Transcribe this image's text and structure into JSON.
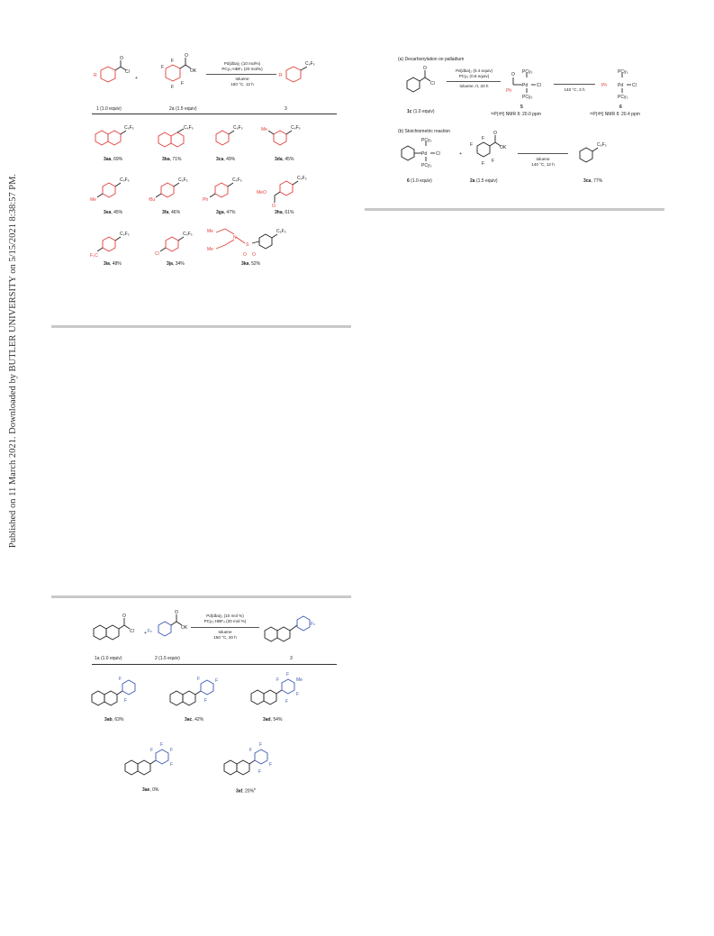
{
  "side_note": "Published on 11 March 2021. Downloaded by BUTLER UNIVERSITY on 5/15/2021 8:38:57 PM.",
  "scheme1": {
    "conditions": [
      "Pd(dba)₂ (10 mol%)",
      "PCy₃·HBF₄ (20 mol%)",
      "toluene",
      "150 °C, 12 h"
    ],
    "reactant1": "1 (1.0 equiv)",
    "reactant2": "2a (1.5 equiv)",
    "product": "3",
    "plus": "+",
    "products": [
      {
        "id": "3aa",
        "yield": ", 69%"
      },
      {
        "id": "3ba",
        "yield": ", 71%"
      },
      {
        "id": "3ca",
        "yield": ", 49%"
      },
      {
        "id": "3da",
        "yield": ", 45%"
      },
      {
        "id": "3ea",
        "yield": ", 45%"
      },
      {
        "id": "3fa",
        "yield": ", 46%"
      },
      {
        "id": "3ga",
        "yield": ", 47%"
      },
      {
        "id": "3ha",
        "yield": ", 61%"
      },
      {
        "id": "3ia",
        "yield": ", 48%"
      },
      {
        "id": "3ja",
        "yield": ", 34%"
      },
      {
        "id": "3ka",
        "yield": ", 52%"
      }
    ]
  },
  "scheme2": {
    "title_a": "(a) Decarbonylation on palladium",
    "cond_a1": [
      "Pd(dba)₂ (0.4 equiv)",
      "PCy₃ (0.8 equiv)",
      "toluene, rt, 20 h"
    ],
    "cond_a2": [
      "140 °C, 3 h"
    ],
    "reactant": "1c (1.0 equiv)",
    "int5": "5",
    "int6": "6",
    "nmr5": "³¹P{¹H} NMR  δ: 20.0 ppm",
    "nmr6": "³¹P{¹H} NMR  δ: 20.4 ppm",
    "title_b": "(b) Stoichiometric reaction",
    "cond_b": [
      "toluene",
      "140 °C, 12 h"
    ],
    "b_reactant1": "6 (1.0 equiv)",
    "b_reactant2": "2a (1.5 equiv)",
    "b_product": "3ca, 77%",
    "plus": "+"
  },
  "scheme3": {
    "conditions": [
      "Pd(dba)₂ (10 mol %)",
      "PCy₃·HBF₄ (20 mol %)",
      "toluene",
      "150 °C, 20 h"
    ],
    "reactant1": "1a (1.0 equiv)",
    "reactant2": "2 (1.5 equiv)",
    "product": "3",
    "plus": "+",
    "products": [
      {
        "id": "3ab",
        "yield": ", 63%"
      },
      {
        "id": "3ac",
        "yield": ", 42%"
      },
      {
        "id": "3ad",
        "yield": ", 54%"
      },
      {
        "id": "3ae",
        "yield": ", 0%"
      },
      {
        "id": "3af",
        "yield": ", 20%",
        "note": "b"
      }
    ]
  }
}
